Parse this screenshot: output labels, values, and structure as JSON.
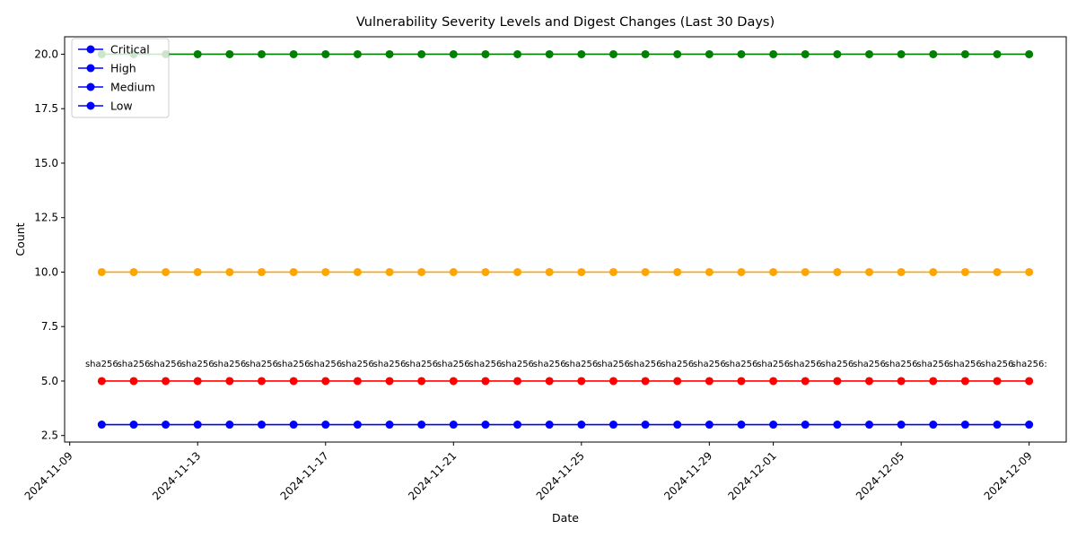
{
  "chart_data": {
    "type": "line",
    "title": "Vulnerability Severity Levels and Digest Changes (Last 30 Days)",
    "xlabel": "Date",
    "ylabel": "Count",
    "x": [
      "2024-11-10",
      "2024-11-11",
      "2024-11-12",
      "2024-11-13",
      "2024-11-14",
      "2024-11-15",
      "2024-11-16",
      "2024-11-17",
      "2024-11-18",
      "2024-11-19",
      "2024-11-20",
      "2024-11-21",
      "2024-11-22",
      "2024-11-23",
      "2024-11-24",
      "2024-11-25",
      "2024-11-26",
      "2024-11-27",
      "2024-11-28",
      "2024-11-29",
      "2024-11-30",
      "2024-12-01",
      "2024-12-02",
      "2024-12-03",
      "2024-12-04",
      "2024-12-05",
      "2024-12-06",
      "2024-12-07",
      "2024-12-08",
      "2024-12-09"
    ],
    "x_ticks": [
      "2024-11-09",
      "2024-11-13",
      "2024-11-17",
      "2024-11-21",
      "2024-11-25",
      "2024-11-29",
      "2024-12-01",
      "2024-12-05",
      "2024-12-09"
    ],
    "y_ticks": [
      "2.5",
      "5.0",
      "7.5",
      "10.0",
      "12.5",
      "15.0",
      "17.5",
      "20.0"
    ],
    "ylim": [
      2.2,
      20.8
    ],
    "grid": false,
    "legend_position": "top-left",
    "series": [
      {
        "name": "Critical",
        "color": "#0000ff",
        "values": [
          3,
          3,
          3,
          3,
          3,
          3,
          3,
          3,
          3,
          3,
          3,
          3,
          3,
          3,
          3,
          3,
          3,
          3,
          3,
          3,
          3,
          3,
          3,
          3,
          3,
          3,
          3,
          3,
          3,
          3
        ]
      },
      {
        "name": "High",
        "color": "#ff0000",
        "values": [
          5,
          5,
          5,
          5,
          5,
          5,
          5,
          5,
          5,
          5,
          5,
          5,
          5,
          5,
          5,
          5,
          5,
          5,
          5,
          5,
          5,
          5,
          5,
          5,
          5,
          5,
          5,
          5,
          5,
          5
        ]
      },
      {
        "name": "Medium",
        "color": "#ffa500",
        "values": [
          10,
          10,
          10,
          10,
          10,
          10,
          10,
          10,
          10,
          10,
          10,
          10,
          10,
          10,
          10,
          10,
          10,
          10,
          10,
          10,
          10,
          10,
          10,
          10,
          10,
          10,
          10,
          10,
          10,
          10
        ]
      },
      {
        "name": "Low",
        "color": "#008000",
        "values": [
          20,
          20,
          20,
          20,
          20,
          20,
          20,
          20,
          20,
          20,
          20,
          20,
          20,
          20,
          20,
          20,
          20,
          20,
          20,
          20,
          20,
          20,
          20,
          20,
          20,
          20,
          20,
          20,
          20,
          20
        ]
      }
    ],
    "legend_color": "#0000ff",
    "annotations": {
      "y": 5,
      "labels": [
        "sha256",
        "sha256",
        "sha256",
        "sha256",
        "sha256",
        "sha256",
        "sha256",
        "sha256",
        "sha256",
        "sha256",
        "sha256",
        "sha256",
        "sha256",
        "sha256",
        "sha256",
        "sha256",
        "sha256",
        "sha256",
        "sha256",
        "sha256",
        "sha256",
        "sha256",
        "sha256",
        "sha256",
        "sha256",
        "sha256",
        "sha256",
        "sha256",
        "sha256",
        "sha256:"
      ]
    }
  }
}
